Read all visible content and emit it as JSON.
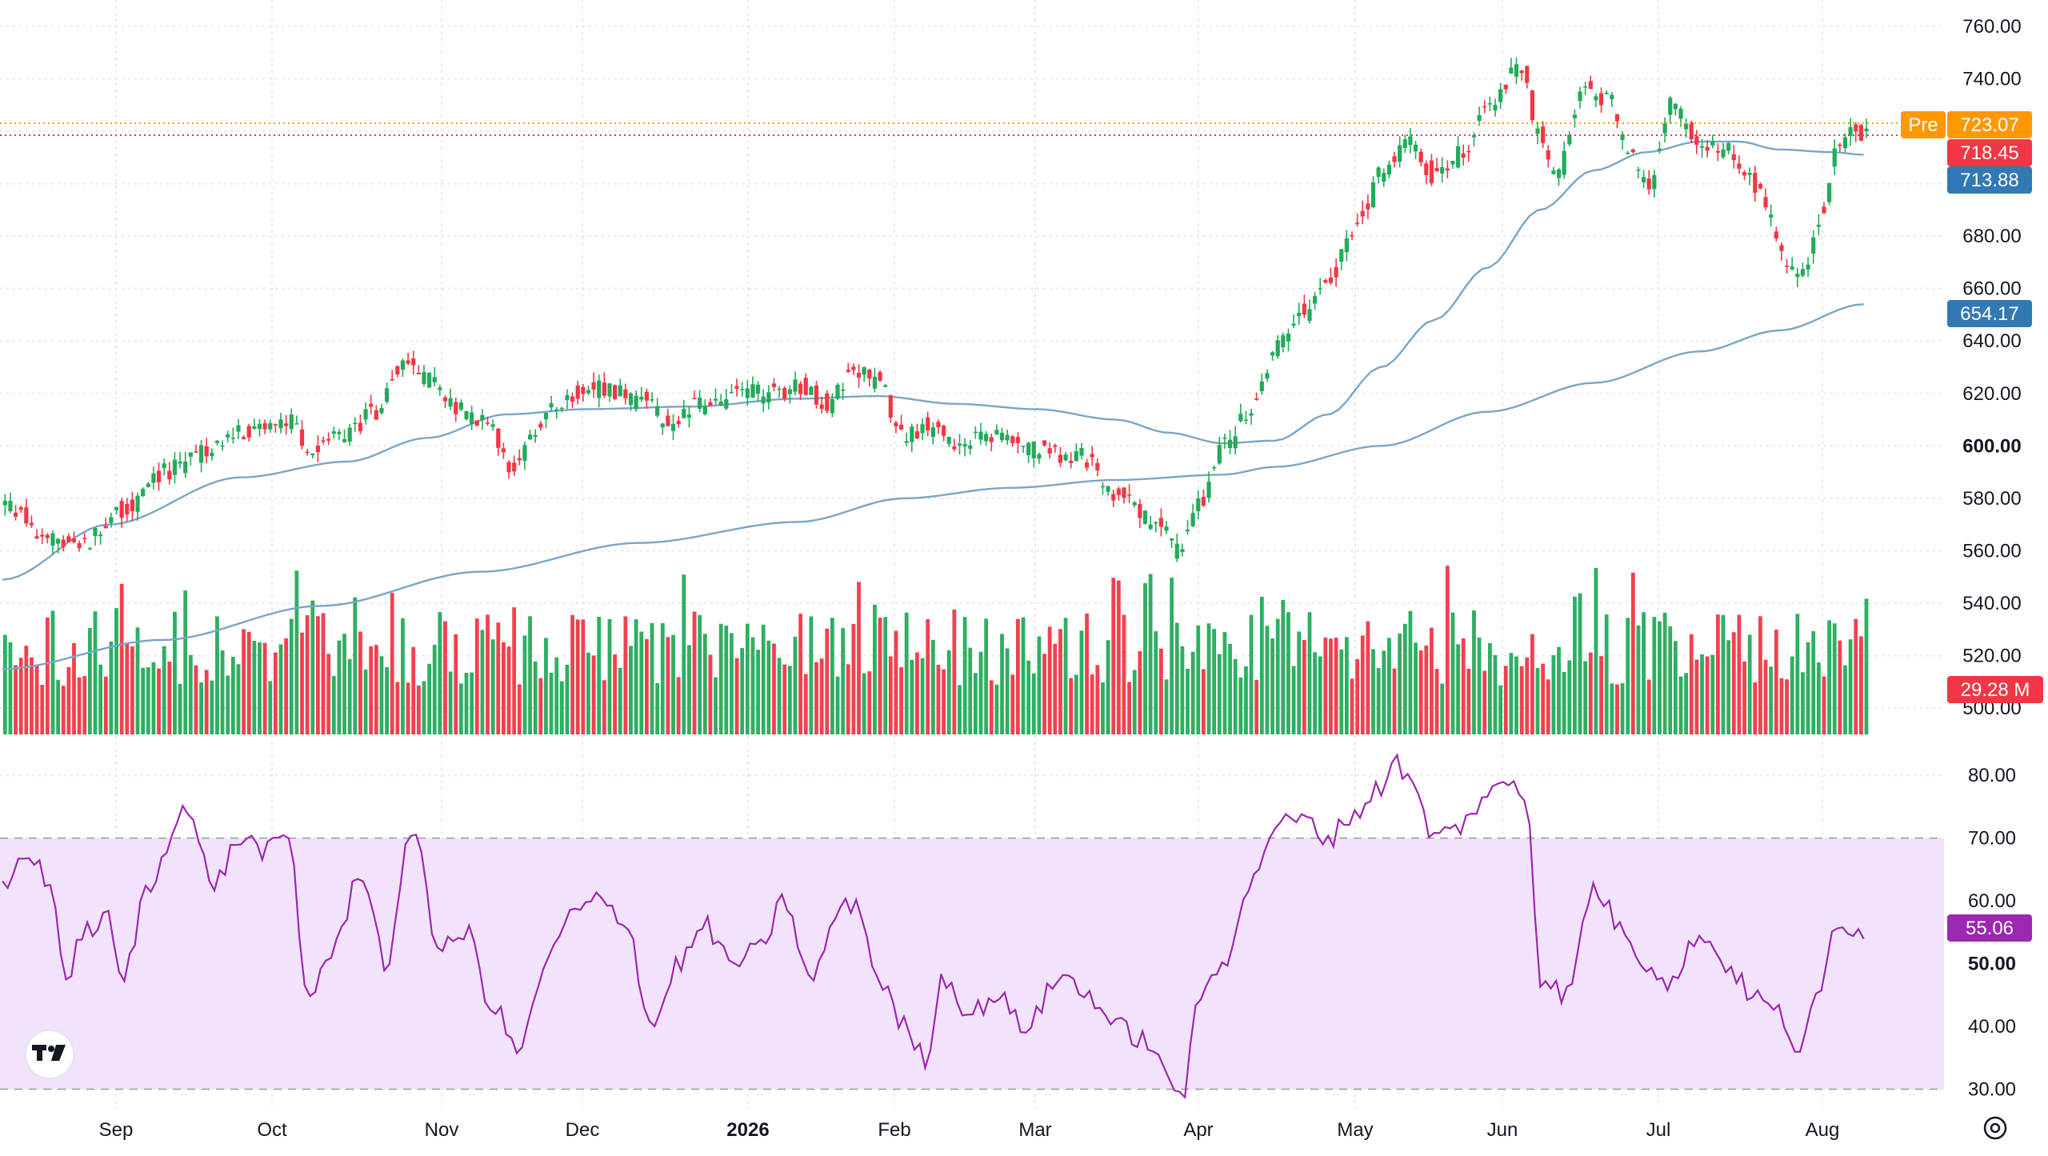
{
  "chart_data": {
    "type": "candlestick",
    "x_axis_labels": [
      "Sep",
      "Oct",
      "Nov",
      "Dec",
      "2026",
      "Feb",
      "Mar",
      "Apr",
      "May",
      "Jun",
      "Jul",
      "Aug"
    ],
    "price_axis": {
      "ticks": [
        "760.00",
        "740.00",
        "720.00",
        "700.00",
        "680.00",
        "660.00",
        "640.00",
        "620.00",
        "600.00",
        "580.00",
        "560.00",
        "540.00",
        "520.00",
        "500.00"
      ],
      "bold_tick": "600.00",
      "range": [
        490,
        770
      ]
    },
    "price_tags": [
      {
        "prefix": "Pre",
        "value": "723.07",
        "color": "#ff9800",
        "line_style": "dotted"
      },
      {
        "value": "718.45",
        "color": "#f23645",
        "line_style": "dotted"
      },
      {
        "value": "713.88",
        "color": "#3179b5"
      },
      {
        "value": "654.17",
        "color": "#3179b5"
      }
    ],
    "volume_tag": {
      "value": "29.28 M",
      "color": "#f23645"
    },
    "rsi_axis": {
      "ticks": [
        "80.00",
        "70.00",
        "60.00",
        "50.00",
        "40.00",
        "30.00"
      ],
      "bold_tick": "50.00",
      "range": [
        27,
        85
      ],
      "band": [
        30,
        70
      ]
    },
    "rsi_tag": {
      "value": "55.06",
      "color": "#9c27b0"
    },
    "colors": {
      "up": "#22ab5a",
      "down": "#f23645",
      "ma": "#7aa6c6",
      "rsi": "#9c27b0",
      "rsi_band": "#f1e3fc"
    },
    "price_anchors": [
      [
        0,
        578
      ],
      [
        15,
        565
      ],
      [
        28,
        562
      ],
      [
        45,
        575
      ],
      [
        60,
        590
      ],
      [
        75,
        598
      ],
      [
        90,
        605
      ],
      [
        108,
        610
      ],
      [
        115,
        597
      ],
      [
        130,
        605
      ],
      [
        138,
        612
      ],
      [
        150,
        632
      ],
      [
        160,
        625
      ],
      [
        170,
        614
      ],
      [
        182,
        608
      ],
      [
        190,
        592
      ],
      [
        200,
        605
      ],
      [
        210,
        618
      ],
      [
        225,
        622
      ],
      [
        240,
        618
      ],
      [
        250,
        610
      ],
      [
        260,
        615
      ],
      [
        280,
        620
      ],
      [
        300,
        622
      ],
      [
        310,
        616
      ],
      [
        320,
        628
      ],
      [
        330,
        625
      ],
      [
        338,
        603
      ],
      [
        350,
        608
      ],
      [
        360,
        600
      ],
      [
        370,
        605
      ],
      [
        390,
        598
      ],
      [
        405,
        596
      ],
      [
        420,
        582
      ],
      [
        435,
        570
      ],
      [
        442,
        560
      ],
      [
        450,
        578
      ],
      [
        460,
        600
      ],
      [
        470,
        615
      ],
      [
        480,
        638
      ],
      [
        490,
        650
      ],
      [
        500,
        665
      ],
      [
        510,
        685
      ],
      [
        520,
        705
      ],
      [
        530,
        715
      ],
      [
        540,
        702
      ],
      [
        550,
        712
      ],
      [
        560,
        730
      ],
      [
        572,
        745
      ],
      [
        578,
        720
      ],
      [
        585,
        702
      ],
      [
        595,
        735
      ],
      [
        605,
        732
      ],
      [
        612,
        712
      ],
      [
        620,
        700
      ],
      [
        628,
        730
      ],
      [
        640,
        715
      ],
      [
        650,
        712
      ],
      [
        660,
        700
      ],
      [
        672,
        670
      ],
      [
        678,
        665
      ],
      [
        685,
        688
      ],
      [
        690,
        710
      ],
      [
        697,
        722
      ],
      [
        702,
        718
      ]
    ],
    "ma50_anchors": [
      [
        0,
        549
      ],
      [
        40,
        570
      ],
      [
        90,
        588
      ],
      [
        130,
        594
      ],
      [
        160,
        603
      ],
      [
        190,
        612
      ],
      [
        220,
        614
      ],
      [
        260,
        615
      ],
      [
        300,
        618
      ],
      [
        330,
        619
      ],
      [
        360,
        616
      ],
      [
        390,
        614
      ],
      [
        420,
        610
      ],
      [
        440,
        605
      ],
      [
        460,
        601
      ],
      [
        480,
        602
      ],
      [
        500,
        612
      ],
      [
        520,
        630
      ],
      [
        540,
        648
      ],
      [
        560,
        668
      ],
      [
        580,
        690
      ],
      [
        600,
        705
      ],
      [
        620,
        712
      ],
      [
        640,
        716
      ],
      [
        655,
        716
      ],
      [
        670,
        713
      ],
      [
        690,
        712
      ],
      [
        702,
        711
      ]
    ],
    "ma200_anchors": [
      [
        0,
        515
      ],
      [
        60,
        526
      ],
      [
        120,
        539
      ],
      [
        180,
        552
      ],
      [
        240,
        563
      ],
      [
        300,
        571
      ],
      [
        340,
        580
      ],
      [
        380,
        584
      ],
      [
        420,
        587
      ],
      [
        460,
        589
      ],
      [
        480,
        592
      ],
      [
        520,
        600
      ],
      [
        560,
        613
      ],
      [
        600,
        624
      ],
      [
        640,
        636
      ],
      [
        670,
        644
      ],
      [
        702,
        654
      ]
    ],
    "rsi_anchors": [
      [
        0,
        62
      ],
      [
        10,
        68
      ],
      [
        18,
        62
      ],
      [
        25,
        47
      ],
      [
        30,
        55
      ],
      [
        40,
        57
      ],
      [
        45,
        47
      ],
      [
        55,
        62
      ],
      [
        68,
        75
      ],
      [
        80,
        63
      ],
      [
        90,
        70
      ],
      [
        100,
        68
      ],
      [
        108,
        70
      ],
      [
        115,
        45
      ],
      [
        125,
        52
      ],
      [
        135,
        65
      ],
      [
        145,
        50
      ],
      [
        155,
        72
      ],
      [
        165,
        52
      ],
      [
        175,
        55
      ],
      [
        185,
        43
      ],
      [
        195,
        36
      ],
      [
        205,
        50
      ],
      [
        215,
        58
      ],
      [
        225,
        60
      ],
      [
        235,
        57
      ],
      [
        245,
        40
      ],
      [
        255,
        50
      ],
      [
        265,
        56
      ],
      [
        275,
        50
      ],
      [
        285,
        52
      ],
      [
        295,
        60
      ],
      [
        305,
        47
      ],
      [
        315,
        58
      ],
      [
        322,
        60
      ],
      [
        330,
        48
      ],
      [
        340,
        40
      ],
      [
        348,
        35
      ],
      [
        355,
        48
      ],
      [
        365,
        42
      ],
      [
        375,
        45
      ],
      [
        385,
        40
      ],
      [
        400,
        48
      ],
      [
        410,
        45
      ],
      [
        420,
        40
      ],
      [
        430,
        38
      ],
      [
        440,
        32
      ],
      [
        445,
        29
      ],
      [
        452,
        45
      ],
      [
        460,
        50
      ],
      [
        470,
        62
      ],
      [
        480,
        72
      ],
      [
        490,
        73
      ],
      [
        500,
        70
      ],
      [
        510,
        74
      ],
      [
        520,
        78
      ],
      [
        525,
        83
      ],
      [
        532,
        78
      ],
      [
        540,
        70
      ],
      [
        550,
        72
      ],
      [
        560,
        77
      ],
      [
        570,
        79
      ],
      [
        575,
        76
      ],
      [
        580,
        48
      ],
      [
        590,
        45
      ],
      [
        600,
        62
      ],
      [
        612,
        55
      ],
      [
        620,
        50
      ],
      [
        630,
        47
      ],
      [
        640,
        55
      ],
      [
        650,
        50
      ],
      [
        660,
        45
      ],
      [
        670,
        42
      ],
      [
        678,
        36
      ],
      [
        685,
        45
      ],
      [
        692,
        57
      ],
      [
        702,
        55
      ]
    ]
  }
}
